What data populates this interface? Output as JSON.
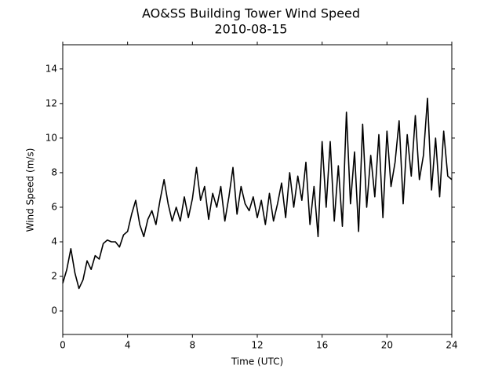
{
  "chart_data": {
    "type": "line",
    "title": "AO&SS Building Tower Wind Speed",
    "subtitle": "2010-08-15",
    "xlabel": "Time (UTC)",
    "ylabel": "Wind Speed (m/s)",
    "xlim": [
      0,
      24
    ],
    "xticks": [
      0,
      4,
      8,
      12,
      16,
      20,
      24
    ],
    "ylim": [
      -1.36,
      15.4
    ],
    "yticks": [
      0,
      2,
      4,
      6,
      8,
      10,
      12,
      14
    ],
    "grid": false,
    "series": [
      {
        "color": "#000000",
        "x": [
          0,
          0.25,
          0.5,
          0.75,
          1,
          1.25,
          1.5,
          1.75,
          2,
          2.25,
          2.5,
          2.75,
          3,
          3.25,
          3.5,
          3.75,
          4,
          4.25,
          4.5,
          4.75,
          5,
          5.25,
          5.5,
          5.75,
          6,
          6.25,
          6.5,
          6.75,
          7,
          7.25,
          7.5,
          7.75,
          8,
          8.25,
          8.5,
          8.75,
          9,
          9.25,
          9.5,
          9.75,
          10,
          10.25,
          10.5,
          10.75,
          11,
          11.25,
          11.5,
          11.75,
          12,
          12.25,
          12.5,
          12.75,
          13,
          13.25,
          13.5,
          13.75,
          14,
          14.25,
          14.5,
          14.75,
          15,
          15.25,
          15.5,
          15.75,
          16,
          16.25,
          16.5,
          16.75,
          17,
          17.25,
          17.5,
          17.75,
          18,
          18.25,
          18.5,
          18.75,
          19,
          19.25,
          19.5,
          19.75,
          20,
          20.25,
          20.5,
          20.75,
          21,
          21.25,
          21.5,
          21.75,
          22,
          22.25,
          22.5,
          22.75,
          23,
          23.25,
          23.5,
          23.75,
          24
        ],
        "values": [
          1.6,
          2.4,
          3.6,
          2.2,
          1.3,
          1.8,
          2.9,
          2.4,
          3.2,
          3.0,
          3.9,
          4.1,
          4.0,
          4.0,
          3.7,
          4.4,
          4.6,
          5.6,
          6.4,
          5.0,
          4.3,
          5.3,
          5.8,
          5.0,
          6.4,
          7.6,
          6.2,
          5.2,
          6.0,
          5.2,
          6.6,
          5.4,
          6.5,
          8.3,
          6.4,
          7.2,
          5.3,
          6.8,
          6.0,
          7.2,
          5.2,
          6.6,
          8.3,
          5.6,
          7.2,
          6.2,
          5.8,
          6.6,
          5.4,
          6.4,
          5.0,
          6.8,
          5.2,
          6.2,
          7.4,
          5.4,
          8.0,
          6.0,
          7.8,
          6.4,
          8.6,
          5.0,
          7.2,
          4.3,
          9.8,
          6.0,
          9.8,
          5.2,
          8.4,
          4.9,
          11.5,
          6.2,
          9.2,
          4.6,
          10.8,
          6.0,
          9.0,
          6.6,
          10.2,
          5.4,
          10.4,
          7.2,
          8.6,
          11.0,
          6.2,
          10.2,
          7.8,
          11.3,
          7.6,
          9.0,
          12.3,
          7.0,
          10.0,
          6.6,
          10.4,
          7.8,
          7.6
        ]
      }
    ]
  }
}
